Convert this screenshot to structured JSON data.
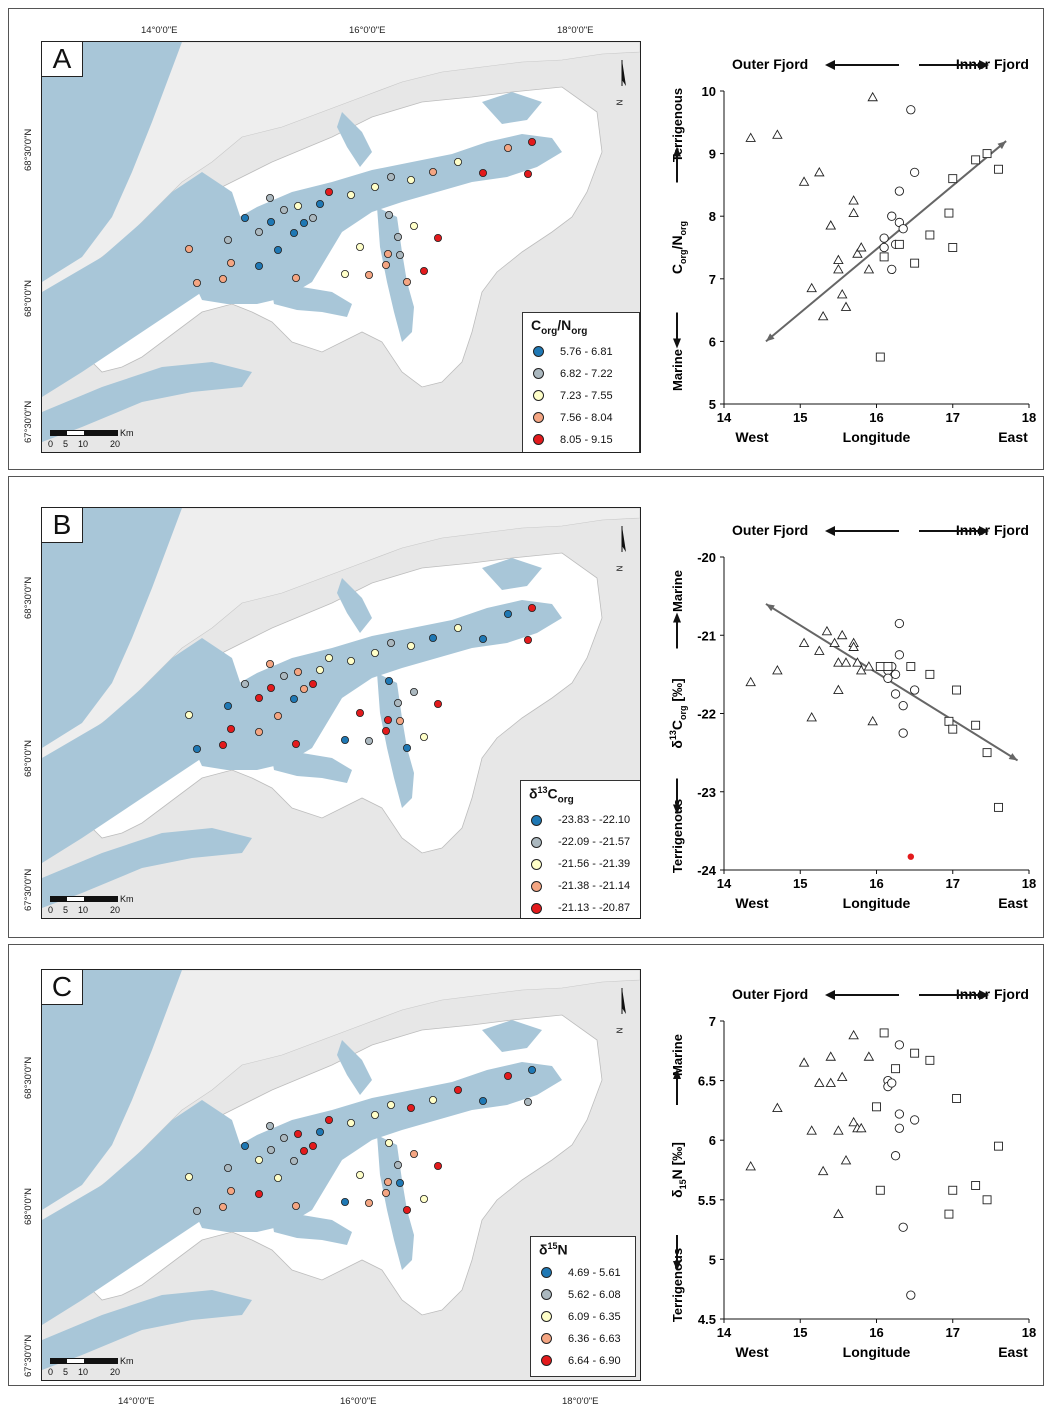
{
  "map": {
    "lon_labels": [
      "14°0'0\"E",
      "16°0'0\"E",
      "18°0'0\"E"
    ],
    "lat_labels": [
      "68°30'0\"N",
      "68°0'0\"N",
      "67°30'0\"N"
    ],
    "north": "N",
    "scale": {
      "unit": "Km",
      "ticks": [
        "0",
        "5",
        "10",
        "20"
      ]
    }
  },
  "colors": {
    "water": "#a8c6d8",
    "land": "#ffffff",
    "outer_land": "#e7e7e7",
    "c1": "#1f78b4",
    "c2": "#abb8bf",
    "c3": "#ffffc8",
    "c4": "#f4a582",
    "c5": "#e31a1c"
  },
  "panels": [
    {
      "letter": "A",
      "legend": {
        "title_main": "C",
        "title_sub1": "org",
        "title_mid": "/N",
        "title_sub2": "org",
        "title_sup": "",
        "title_end": "",
        "ranges": [
          "5.76 - 6.81",
          "6.82 - 7.22",
          "7.23 - 7.55",
          "7.56 - 8.04",
          "8.05 - 9.15"
        ]
      },
      "stations": [
        [
          0.64,
          0.29,
          4
        ],
        [
          0.61,
          0.3,
          3
        ],
        [
          0.58,
          0.33,
          4
        ],
        [
          0.55,
          0.31,
          4
        ],
        [
          0.53,
          0.34,
          3
        ],
        [
          0.51,
          0.35,
          2
        ],
        [
          0.49,
          0.36,
          0
        ],
        [
          0.47,
          0.39,
          1
        ],
        [
          0.43,
          0.41,
          0
        ],
        [
          0.4,
          0.41,
          1
        ],
        [
          0.38,
          0.38,
          0
        ],
        [
          0.37,
          0.4,
          2
        ],
        [
          0.35,
          0.44,
          2
        ],
        [
          0.33,
          0.43,
          4
        ],
        [
          0.31,
          0.38,
          3
        ],
        [
          0.28,
          0.34,
          5
        ],
        [
          0.26,
          0.38,
          1
        ],
        [
          0.24,
          0.36,
          2
        ],
        [
          0.22,
          0.41,
          1
        ],
        [
          0.2,
          0.44,
          0
        ],
        [
          0.2,
          0.47,
          3
        ],
        [
          0.17,
          0.45,
          0
        ],
        [
          0.15,
          0.5,
          1
        ],
        [
          0.13,
          0.55,
          1
        ]
      ],
      "chart": {
        "ylabel_main": "C",
        "ylabel_sub1": "org",
        "ylabel_mid": "/N",
        "ylabel_sub2": "org",
        "ylabel_unit": "",
        "y_top": "Terrigenous",
        "y_bottom": "Marine",
        "ylim": [
          5,
          10
        ],
        "yticks": [
          5,
          6,
          7,
          8,
          9,
          10
        ],
        "arrow": [
          [
            14.55,
            6.0
          ],
          [
            17.7,
            9.2
          ]
        ]
      }
    },
    {
      "letter": "B",
      "legend": {
        "title_main": "δ",
        "title_sup": "13",
        "title_end": "C",
        "title_sub1": "org",
        "title_mid": "",
        "title_sub2": "",
        "ranges": [
          "-23.83 - -22.10",
          "-22.09 - -21.57",
          "-21.56 - -21.39",
          "-21.38 - -21.14",
          "-21.13 - -20.87"
        ]
      },
      "chart": {
        "ylabel_main": "δ",
        "ylabel_sup": "13",
        "ylabel_mid": "C",
        "ylabel_sub1": "org",
        "ylabel_unit": " [‰]",
        "y_top": "Marine",
        "y_bottom": "Terrigenous",
        "ylim": [
          -24,
          -20
        ],
        "yticks": [
          -24,
          -23,
          -22,
          -21,
          -20
        ],
        "arrow": [
          [
            14.55,
            -20.6
          ],
          [
            17.85,
            -22.6
          ]
        ],
        "highlight": {
          "x": 16.45,
          "y": -23.83,
          "color": "#e31a1c"
        }
      }
    },
    {
      "letter": "C",
      "legend": {
        "title_main": "δ",
        "title_sup": "15",
        "title_end": "N",
        "title_sub1": "",
        "title_mid": "",
        "title_sub2": "",
        "ranges": [
          "4.69 - 5.61",
          "5.62 - 6.08",
          "6.09 - 6.35",
          "6.36 - 6.63",
          "6.64 - 6.90"
        ]
      },
      "chart": {
        "ylabel_main": "δ",
        "ylabel_sub1": "15",
        "ylabel_mid": "N",
        "ylabel_unit": " [‰]",
        "y_top": "Marine",
        "y_bottom": "Terrigenous",
        "ylim": [
          4.5,
          7
        ],
        "yticks": [
          4.5,
          5,
          5.5,
          6,
          6.5,
          7
        ]
      }
    }
  ],
  "chart_data": [
    {
      "type": "scatter",
      "xlabel": "Longitude",
      "xlim": [
        14,
        18
      ],
      "xticks": [
        14,
        15,
        16,
        17,
        18
      ],
      "x_left": "West",
      "x_right": "East",
      "top_left": "Outer Fjord",
      "top_right": "Inner Fjord",
      "ylabel": "Corg/Norg",
      "ylim": [
        5,
        10
      ],
      "series": [
        {
          "marker": "triangle",
          "points": [
            [
              14.35,
              9.25
            ],
            [
              14.7,
              9.3
            ],
            [
              15.05,
              8.55
            ],
            [
              15.25,
              8.7
            ],
            [
              15.95,
              9.9
            ],
            [
              15.4,
              7.85
            ],
            [
              15.4,
              7.85
            ],
            [
              15.7,
              8.25
            ],
            [
              15.7,
              8.05
            ],
            [
              15.75,
              7.4
            ],
            [
              15.8,
              7.5
            ],
            [
              15.5,
              7.3
            ],
            [
              15.5,
              7.15
            ],
            [
              15.9,
              7.15
            ],
            [
              15.15,
              6.85
            ],
            [
              15.55,
              6.75
            ],
            [
              15.6,
              6.55
            ],
            [
              15.3,
              6.4
            ]
          ]
        },
        {
          "marker": "circle",
          "points": [
            [
              16.45,
              9.7
            ],
            [
              16.5,
              8.7
            ],
            [
              16.3,
              8.4
            ],
            [
              16.2,
              8.0
            ],
            [
              16.3,
              7.9
            ],
            [
              16.35,
              7.8
            ],
            [
              16.1,
              7.65
            ],
            [
              16.25,
              7.55
            ],
            [
              16.1,
              7.5
            ],
            [
              16.2,
              7.15
            ]
          ]
        },
        {
          "marker": "square",
          "points": [
            [
              17.3,
              8.9
            ],
            [
              17.45,
              9.0
            ],
            [
              17.6,
              8.75
            ],
            [
              17.0,
              8.6
            ],
            [
              16.95,
              8.05
            ],
            [
              16.7,
              7.7
            ],
            [
              17.0,
              7.5
            ],
            [
              16.5,
              7.25
            ],
            [
              16.3,
              7.55
            ],
            [
              16.1,
              7.35
            ],
            [
              16.05,
              5.75
            ]
          ]
        }
      ]
    },
    {
      "type": "scatter",
      "xlabel": "Longitude",
      "xlim": [
        14,
        18
      ],
      "xticks": [
        14,
        15,
        16,
        17,
        18
      ],
      "x_left": "West",
      "x_right": "East",
      "top_left": "Outer Fjord",
      "top_right": "Inner Fjord",
      "ylabel": "δ13Corg [‰]",
      "ylim": [
        -24,
        -20
      ],
      "series": [
        {
          "marker": "triangle",
          "points": [
            [
              14.35,
              -21.6
            ],
            [
              14.7,
              -21.45
            ],
            [
              15.05,
              -21.1
            ],
            [
              15.25,
              -21.2
            ],
            [
              15.35,
              -20.95
            ],
            [
              15.45,
              -21.1
            ],
            [
              15.55,
              -21.0
            ],
            [
              15.5,
              -21.35
            ],
            [
              15.6,
              -21.35
            ],
            [
              15.7,
              -21.1
            ],
            [
              15.7,
              -21.15
            ],
            [
              15.75,
              -21.35
            ],
            [
              15.8,
              -21.45
            ],
            [
              15.9,
              -21.4
            ],
            [
              15.5,
              -21.7
            ],
            [
              15.15,
              -22.05
            ],
            [
              15.95,
              -22.1
            ]
          ]
        },
        {
          "marker": "circle",
          "points": [
            [
              16.3,
              -20.85
            ],
            [
              16.3,
              -21.25
            ],
            [
              16.2,
              -21.4
            ],
            [
              16.15,
              -21.45
            ],
            [
              16.25,
              -21.5
            ],
            [
              16.15,
              -21.55
            ],
            [
              16.5,
              -21.7
            ],
            [
              16.25,
              -21.75
            ],
            [
              16.35,
              -21.9
            ],
            [
              16.35,
              -22.25
            ]
          ]
        },
        {
          "marker": "square",
          "points": [
            [
              16.05,
              -21.4
            ],
            [
              16.15,
              -21.4
            ],
            [
              16.45,
              -21.4
            ],
            [
              16.7,
              -21.5
            ],
            [
              17.05,
              -21.7
            ],
            [
              16.95,
              -22.1
            ],
            [
              17.0,
              -22.2
            ],
            [
              17.3,
              -22.15
            ],
            [
              17.45,
              -22.5
            ],
            [
              17.6,
              -23.2
            ]
          ]
        }
      ]
    },
    {
      "type": "scatter",
      "xlabel": "Longitude",
      "xlim": [
        14,
        18
      ],
      "xticks": [
        14,
        15,
        16,
        17,
        18
      ],
      "x_left": "West",
      "x_right": "East",
      "top_left": "Outer Fjord",
      "top_right": "Inner Fjord",
      "ylabel": "δ15N [‰]",
      "ylim": [
        4.5,
        7
      ],
      "series": [
        {
          "marker": "triangle",
          "points": [
            [
              14.35,
              5.78
            ],
            [
              14.7,
              6.27
            ],
            [
              15.05,
              6.65
            ],
            [
              15.15,
              6.08
            ],
            [
              15.25,
              6.48
            ],
            [
              15.3,
              5.74
            ],
            [
              15.4,
              6.7
            ],
            [
              15.4,
              6.48
            ],
            [
              15.5,
              6.08
            ],
            [
              15.55,
              6.53
            ],
            [
              15.5,
              5.38
            ],
            [
              15.6,
              5.83
            ],
            [
              15.7,
              6.88
            ],
            [
              15.7,
              6.15
            ],
            [
              15.75,
              6.1
            ],
            [
              15.8,
              6.1
            ],
            [
              15.9,
              6.7
            ]
          ]
        },
        {
          "marker": "circle",
          "points": [
            [
              16.3,
              6.8
            ],
            [
              16.15,
              6.5
            ],
            [
              16.15,
              6.45
            ],
            [
              16.2,
              6.48
            ],
            [
              16.3,
              6.22
            ],
            [
              16.5,
              6.17
            ],
            [
              16.3,
              6.1
            ],
            [
              16.25,
              5.87
            ],
            [
              16.35,
              5.27
            ],
            [
              16.45,
              4.7
            ]
          ]
        },
        {
          "marker": "square",
          "points": [
            [
              16.1,
              6.9
            ],
            [
              16.5,
              6.73
            ],
            [
              16.7,
              6.67
            ],
            [
              16.25,
              6.6
            ],
            [
              16.0,
              6.28
            ],
            [
              17.05,
              6.35
            ],
            [
              17.6,
              5.95
            ],
            [
              16.05,
              5.58
            ],
            [
              17.0,
              5.58
            ],
            [
              17.3,
              5.62
            ],
            [
              17.45,
              5.5
            ],
            [
              16.95,
              5.38
            ]
          ]
        }
      ]
    }
  ]
}
